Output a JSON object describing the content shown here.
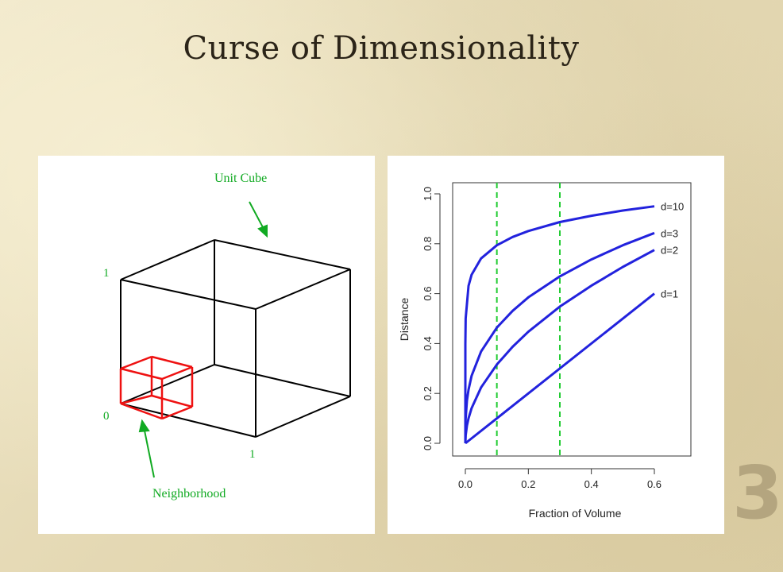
{
  "slide": {
    "title": "Curse of Dimensionality",
    "number": "3"
  },
  "cube_diagram": {
    "unit_cube_label": "Unit Cube",
    "neighborhood_label": "Neighborhood",
    "tick_top": "1",
    "tick_origin": "0",
    "tick_right": "1",
    "colors": {
      "cube": "#000000",
      "neighborhood": "#ee1111",
      "labels": "#11aa22"
    }
  },
  "chart_data": {
    "type": "line",
    "xlabel": "Fraction of Volume",
    "ylabel": "Distance",
    "xlim": [
      0,
      0.72
    ],
    "ylim": [
      0,
      1.0
    ],
    "xticks": [
      0.0,
      0.2,
      0.4,
      0.6
    ],
    "yticks": [
      0.0,
      0.2,
      0.4,
      0.6,
      0.8,
      1.0
    ],
    "xtick_labels": [
      "0.0",
      "0.2",
      "0.4",
      "0.6"
    ],
    "ytick_labels": [
      "0.0",
      "0.2",
      "0.4",
      "0.6",
      "0.8",
      "1.0"
    ],
    "vlines": [
      0.1,
      0.3
    ],
    "vline_color": "#22cc33",
    "series": [
      {
        "name": "d=10",
        "x": [
          0,
          0.0001,
          0.001,
          0.01,
          0.02,
          0.05,
          0.1,
          0.15,
          0.2,
          0.3,
          0.4,
          0.5,
          0.6
        ],
        "values": [
          0,
          0.398,
          0.501,
          0.631,
          0.676,
          0.741,
          0.794,
          0.827,
          0.851,
          0.887,
          0.912,
          0.933,
          0.95
        ]
      },
      {
        "name": "d=3",
        "x": [
          0,
          0.001,
          0.005,
          0.01,
          0.02,
          0.05,
          0.1,
          0.15,
          0.2,
          0.3,
          0.4,
          0.5,
          0.6
        ],
        "values": [
          0,
          0.1,
          0.171,
          0.215,
          0.271,
          0.368,
          0.464,
          0.531,
          0.585,
          0.669,
          0.737,
          0.794,
          0.843
        ]
      },
      {
        "name": "d=2",
        "x": [
          0,
          0.001,
          0.005,
          0.01,
          0.02,
          0.05,
          0.1,
          0.15,
          0.2,
          0.3,
          0.4,
          0.5,
          0.6
        ],
        "values": [
          0,
          0.032,
          0.071,
          0.1,
          0.141,
          0.224,
          0.316,
          0.387,
          0.447,
          0.548,
          0.632,
          0.707,
          0.775
        ]
      },
      {
        "name": "d=1",
        "x": [
          0,
          0.6
        ],
        "values": [
          0,
          0.6
        ]
      }
    ],
    "series_color": "#2222dd"
  }
}
